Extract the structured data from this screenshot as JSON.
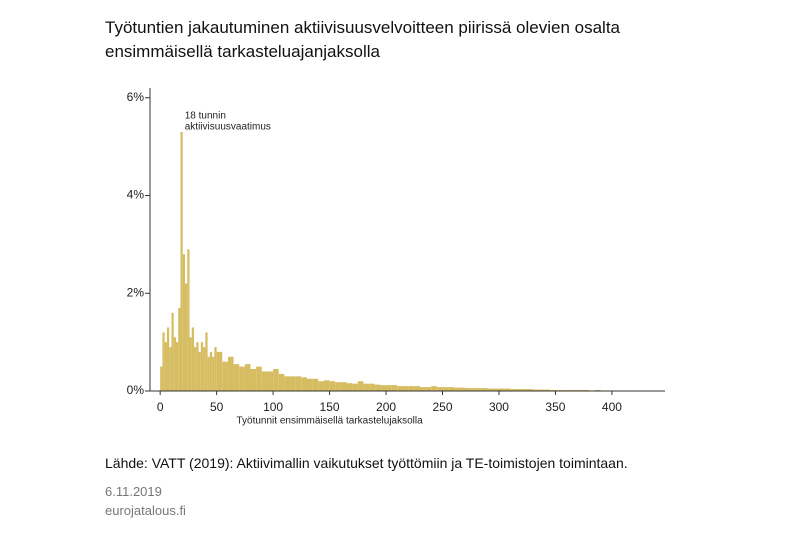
{
  "chart_data": {
    "type": "histogram",
    "title": "Työtuntien jakautuminen aktiivisuusvelvoitteen piirissä olevien osalta ensimmäisellä tarkasteluajanjaksolla",
    "xlabel": "Työtunnit ensimmäisellä tarkastelujaksolla",
    "annotation": [
      "18 tunnin",
      "aktiivisuusvaatimus"
    ],
    "source": "Lähde: VATT (2019): Aktiivimallin vaikutukset työttömiin ja TE-toimistojen toimintaan.",
    "date": "6.11.2019",
    "site": "eurojatalous.fi",
    "color": "#d6bd62",
    "bins": [
      0,
      2,
      4,
      6,
      8,
      10,
      12,
      14,
      16,
      18,
      20,
      22,
      24,
      26,
      28,
      30,
      32,
      34,
      36,
      38,
      40,
      42,
      44,
      46,
      48,
      50,
      55,
      60,
      65,
      70,
      75,
      80,
      85,
      90,
      95,
      100,
      105,
      110,
      115,
      120,
      125,
      130,
      135,
      140,
      145,
      150,
      155,
      160,
      165,
      170,
      175,
      180,
      185,
      190,
      195,
      200,
      205,
      210,
      215,
      220,
      225,
      230,
      235,
      240,
      245,
      250,
      255,
      260,
      265,
      270,
      275,
      280,
      285,
      290,
      295,
      300,
      305,
      310,
      315,
      320,
      325,
      330,
      335,
      340,
      345,
      350,
      355,
      360,
      365,
      370,
      375,
      380,
      385,
      390,
      395,
      400
    ],
    "values": [
      0.5,
      1.2,
      1.0,
      1.3,
      0.9,
      1.6,
      1.1,
      1.0,
      1.7,
      5.3,
      2.8,
      2.2,
      2.9,
      1.1,
      1.3,
      0.9,
      1.0,
      0.8,
      1.0,
      0.9,
      1.2,
      0.7,
      0.8,
      0.7,
      0.9,
      0.8,
      0.6,
      0.7,
      0.55,
      0.5,
      0.55,
      0.45,
      0.5,
      0.4,
      0.4,
      0.45,
      0.35,
      0.3,
      0.3,
      0.3,
      0.28,
      0.25,
      0.25,
      0.2,
      0.22,
      0.2,
      0.18,
      0.18,
      0.16,
      0.15,
      0.2,
      0.15,
      0.15,
      0.13,
      0.12,
      0.12,
      0.12,
      0.1,
      0.1,
      0.1,
      0.1,
      0.08,
      0.08,
      0.1,
      0.08,
      0.08,
      0.08,
      0.07,
      0.07,
      0.06,
      0.06,
      0.06,
      0.06,
      0.05,
      0.05,
      0.05,
      0.05,
      0.04,
      0.04,
      0.04,
      0.04,
      0.03,
      0.03,
      0.03,
      0.02,
      0.02,
      0.02,
      0.02,
      0.02,
      0.02,
      0.02,
      0.01,
      0.02,
      0.01,
      0.01
    ],
    "xlim": [
      -9,
      447
    ],
    "ylim": [
      0,
      6.2
    ],
    "xticks": [
      0,
      50,
      100,
      150,
      200,
      250,
      300,
      350,
      400
    ],
    "yticks": [
      {
        "value": 0,
        "label": "0%"
      },
      {
        "value": 2,
        "label": "2%"
      },
      {
        "value": 4,
        "label": "4%"
      },
      {
        "value": 6,
        "label": "6%"
      }
    ]
  }
}
